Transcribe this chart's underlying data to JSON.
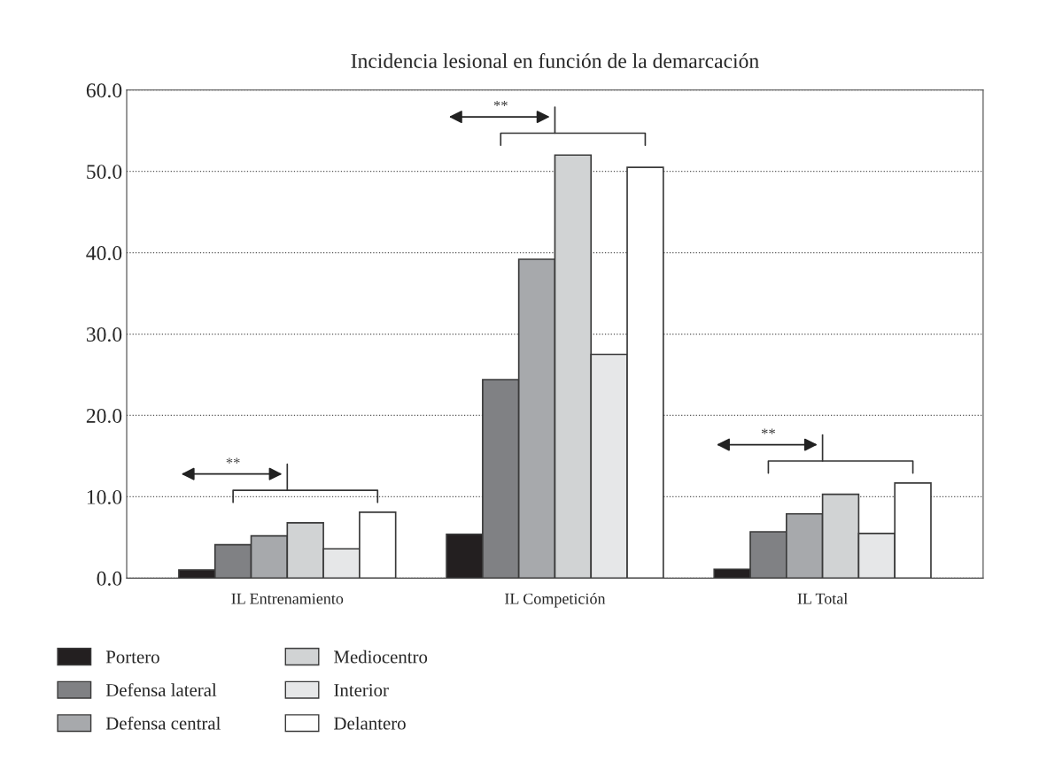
{
  "chart_data": {
    "type": "bar",
    "title": "Incidencia lesional en función de la demarcación",
    "categories": [
      "IL Entrenamiento",
      "IL Competición",
      "IL Total"
    ],
    "series": [
      {
        "name": "Portero",
        "color": "#231f20",
        "values": [
          1.0,
          5.4,
          1.1
        ]
      },
      {
        "name": "Defensa lateral",
        "color": "#808184",
        "values": [
          4.1,
          24.4,
          5.7
        ]
      },
      {
        "name": "Defensa central",
        "color": "#a7a9ac",
        "values": [
          5.2,
          39.2,
          7.9
        ]
      },
      {
        "name": "Mediocentro",
        "color": "#d1d3d4",
        "values": [
          6.8,
          52.0,
          10.3
        ]
      },
      {
        "name": "Interior",
        "color": "#e6e7e8",
        "values": [
          3.6,
          27.5,
          5.5
        ]
      },
      {
        "name": "Delantero",
        "color": "#ffffff",
        "values": [
          8.1,
          50.5,
          11.7
        ]
      }
    ],
    "ylim": [
      0,
      60
    ],
    "yticks": [
      {
        "value": 0,
        "label": "0.0"
      },
      {
        "value": 10,
        "label": "10.0"
      },
      {
        "value": 20,
        "label": "20.0"
      },
      {
        "value": 30,
        "label": "30.0"
      },
      {
        "value": 40,
        "label": "40.0"
      },
      {
        "value": 50,
        "label": "50.0"
      },
      {
        "value": 60,
        "label": "60.0"
      }
    ],
    "grid": "y",
    "legend": "bottom",
    "annotations": [
      "**",
      "**",
      "**"
    ]
  }
}
